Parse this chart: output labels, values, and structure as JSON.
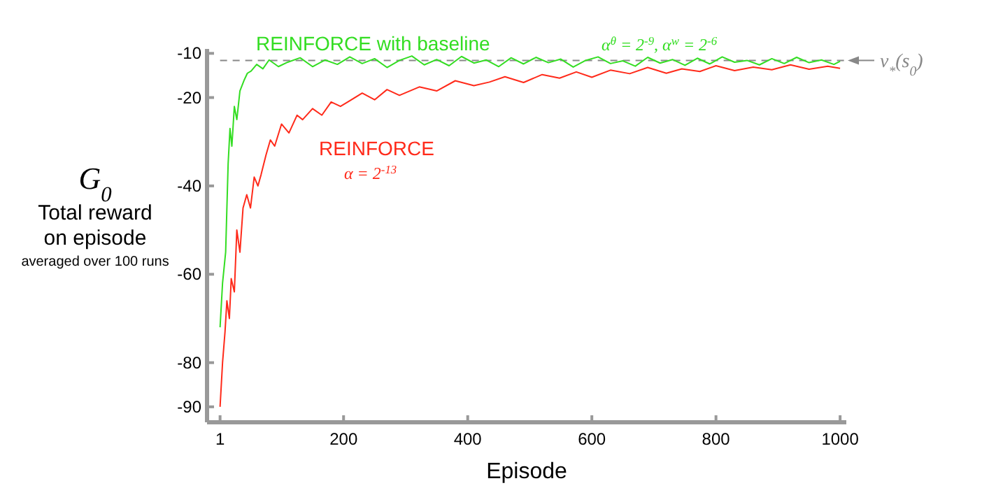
{
  "chart_data": {
    "type": "line",
    "xlabel": "Episode",
    "ylabel": "G$_{0}$\nTotal reward\non episode\naveraged over 100 runs",
    "xlim": [
      -20,
      1010
    ],
    "ylim": [
      -93.5,
      -9
    ],
    "xticks": [
      1,
      200,
      400,
      600,
      800,
      1000
    ],
    "yticks": [
      -10,
      -20,
      -40,
      -60,
      -80,
      -90
    ],
    "grid": false,
    "marker": "none",
    "line_style": "solid",
    "ref_lines": [
      {
        "axis": "y",
        "value": -11.6,
        "label": "v$_{*}$(s$_{0}$)",
        "color": "#888888",
        "line_style": "dashed"
      }
    ],
    "annotations": [
      "α$^{θ}$ = 2$^{-9}$, α$^{w}$ = 2$^{-6}$",
      "α = 2$^{-13}$"
    ],
    "series": [
      {
        "name": "REINFORCE with baseline",
        "color": "#33dd22",
        "x": [
          1,
          5,
          10,
          14,
          17,
          20,
          24,
          28,
          33,
          40,
          45,
          51,
          60,
          70,
          80,
          95,
          110,
          130,
          150,
          170,
          190,
          210,
          230,
          250,
          270,
          290,
          310,
          330,
          350,
          370,
          390,
          410,
          430,
          450,
          470,
          490,
          510,
          530,
          550,
          570,
          590,
          610,
          630,
          650,
          670,
          690,
          710,
          730,
          750,
          770,
          790,
          810,
          830,
          850,
          870,
          890,
          910,
          930,
          950,
          970,
          990,
          1000
        ],
        "values": [
          -72,
          -62,
          -55,
          -35,
          -27,
          -31,
          -22,
          -25,
          -18.5,
          -16,
          -14.5,
          -14,
          -12.5,
          -13.5,
          -11.5,
          -13,
          -12,
          -11,
          -13,
          -11.5,
          -12.5,
          -10.8,
          -12.3,
          -11.2,
          -13.2,
          -11.6,
          -10.6,
          -12.6,
          -11.4,
          -12.8,
          -10.7,
          -12.2,
          -11.5,
          -13,
          -11,
          -12.4,
          -10.9,
          -12.1,
          -11.3,
          -13.1,
          -11.6,
          -10.8,
          -12.3,
          -11.7,
          -12.9,
          -10.9,
          -12.2,
          -11.4,
          -12.7,
          -11.1,
          -12.4,
          -10.8,
          -12,
          -11.6,
          -12.6,
          -11.2,
          -12.3,
          -10.9,
          -12.1,
          -11.5,
          -12.5,
          -11.8
        ]
      },
      {
        "name": "REINFORCE",
        "color": "#ff2a1a",
        "x": [
          1,
          5,
          9,
          12,
          16,
          19,
          24,
          28,
          33,
          38,
          44,
          50,
          56,
          62,
          67,
          75,
          82,
          89,
          100,
          112,
          125,
          134,
          150,
          165,
          180,
          195,
          209,
          230,
          250,
          270,
          290,
          322,
          350,
          380,
          410,
          435,
          460,
          490,
          520,
          548,
          575,
          600,
          630,
          661,
          690,
          720,
          745,
          774,
          800,
          830,
          860,
          890,
          920,
          950,
          980,
          1000
        ],
        "values": [
          -90,
          -80,
          -73,
          -66,
          -70,
          -61,
          -64,
          -50,
          -55,
          -45,
          -42,
          -45,
          -38,
          -40,
          -37.5,
          -33,
          -29.6,
          -31,
          -26,
          -28,
          -24,
          -25,
          -22.5,
          -24,
          -21,
          -22,
          -20.8,
          -19,
          -20.5,
          -18.2,
          -19.5,
          -17.6,
          -18.5,
          -16.2,
          -17.3,
          -16.5,
          -15.3,
          -16.6,
          -14.8,
          -15.6,
          -14.2,
          -15.4,
          -13.8,
          -14.6,
          -13.2,
          -14.5,
          -13.5,
          -14.1,
          -12.8,
          -13.9,
          -13.1,
          -13.7,
          -12.6,
          -13.6,
          -12.9,
          -13.4
        ]
      }
    ]
  }
}
